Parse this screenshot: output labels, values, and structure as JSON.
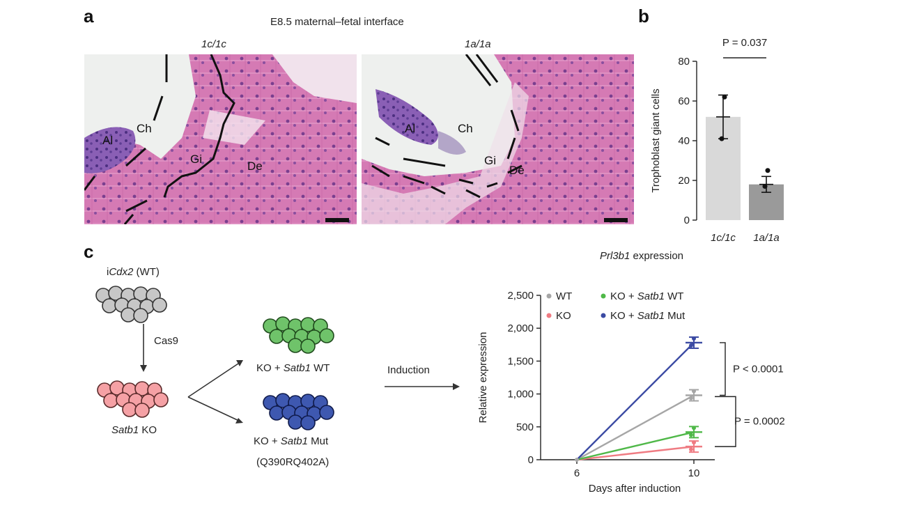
{
  "figure": {
    "panel_a": {
      "letter": "a",
      "title": "E8.5 maternal–fetal interface",
      "left": {
        "genotype": "1c/1c",
        "labels": [
          "Al",
          "Ch",
          "Gi",
          "De"
        ]
      },
      "right": {
        "genotype": "1a/1a",
        "labels": [
          "Al",
          "Ch",
          "Gi",
          "De"
        ]
      }
    },
    "panel_b": {
      "letter": "b",
      "pvalue": "P = 0.037"
    },
    "panel_c": {
      "letter": "c",
      "wt_label_prefix": "i",
      "wt_label_gene": "Cdx2",
      "wt_label_suffix": " (WT)",
      "cas9": "Cas9",
      "ko_gene": "Satb1",
      "ko_suffix": " KO",
      "rescue_wt_prefix": "KO + ",
      "rescue_wt_gene": "Satb1",
      "rescue_wt_suffix": " WT",
      "rescue_mut_prefix": "KO + ",
      "rescue_mut_gene": "Satb1",
      "rescue_mut_suffix": " Mut",
      "rescue_mut_detail": "(Q390RQ402A)",
      "induction": "Induction",
      "p1": "P < 0.0001",
      "p2": "P = 0.0002"
    }
  },
  "chart_data": [
    {
      "type": "bar",
      "categories": [
        "1c/1c",
        "1a/1a"
      ],
      "values": [
        52,
        18
      ],
      "errors": [
        11,
        4
      ],
      "points": [
        [
          62,
          41
        ],
        [
          25,
          17
        ]
      ],
      "ylabel": "Trophoblast giant cells",
      "ylim": [
        0,
        80
      ],
      "yticks": [
        0,
        20,
        40,
        60,
        80
      ],
      "colors": [
        "#d9d9d9",
        "#9a9a9a"
      ]
    },
    {
      "type": "line",
      "title_gene": "Prl3b1",
      "title_suffix": " expression",
      "x": [
        6,
        10
      ],
      "xlabel": "Days after induction",
      "ylabel": "Relative expression",
      "ylim": [
        0,
        2500
      ],
      "yticks": [
        0,
        500,
        1000,
        1500,
        2000,
        2500
      ],
      "ytick_labels": [
        "0",
        "500",
        "1,000",
        "1,500",
        "2,000",
        "2,500"
      ],
      "series": [
        {
          "name": "WT",
          "values": [
            0,
            980
          ],
          "color": "#a6a6a6"
        },
        {
          "name": "KO",
          "values": [
            0,
            200
          ],
          "color": "#ef7b82"
        },
        {
          "name_prefix": "KO + ",
          "name_gene": "Satb1",
          "name_suffix": " WT",
          "values": [
            0,
            420
          ],
          "color": "#4fb848"
        },
        {
          "name_prefix": "KO + ",
          "name_gene": "Satb1",
          "name_suffix": " Mut",
          "values": [
            0,
            1780
          ],
          "color": "#3b4aa3"
        }
      ]
    }
  ]
}
